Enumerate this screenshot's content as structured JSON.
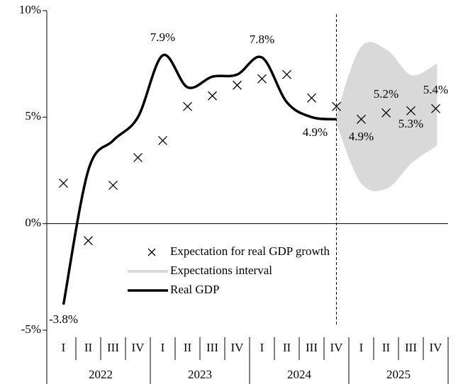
{
  "chart_data": {
    "type": "line",
    "categories": [
      "I",
      "II",
      "III",
      "IV",
      "I",
      "II",
      "III",
      "IV",
      "I",
      "II",
      "III",
      "IV",
      "I",
      "II",
      "III",
      "IV"
    ],
    "years": [
      "2022",
      "2023",
      "2024",
      "2025"
    ],
    "ylim": [
      -5,
      10
    ],
    "yticks": [
      {
        "value": -5,
        "label": "-5%"
      },
      {
        "value": 0,
        "label": "0%"
      },
      {
        "value": 5,
        "label": "5%"
      },
      {
        "value": 10,
        "label": "10%"
      }
    ],
    "interval": {
      "name": "Expectations interval",
      "color": "#d9d9d9",
      "upper": [
        null,
        null,
        null,
        null,
        null,
        null,
        null,
        null,
        null,
        null,
        null,
        4.9,
        8.2,
        8.1,
        6.9,
        7.4
      ],
      "lower": [
        null,
        null,
        null,
        null,
        null,
        null,
        null,
        null,
        null,
        null,
        null,
        4.9,
        2.0,
        1.7,
        2.9,
        3.7
      ]
    },
    "series": [
      {
        "name": "Expectation for real GDP growth",
        "color": "#000000",
        "marker": "x",
        "values": [
          1.9,
          -0.8,
          1.8,
          3.1,
          3.9,
          5.5,
          6.0,
          6.5,
          6.8,
          7.0,
          5.9,
          5.5,
          4.9,
          5.2,
          5.3,
          5.4
        ],
        "value_labels": [
          null,
          null,
          null,
          null,
          null,
          null,
          null,
          null,
          null,
          null,
          null,
          null,
          "4.9%",
          "5.2%",
          "5.3%",
          "5.4%"
        ]
      },
      {
        "name": "Real GDP",
        "color": "#000000",
        "values": [
          -3.8,
          2.5,
          3.9,
          5.0,
          7.9,
          6.4,
          6.9,
          7.0,
          7.8,
          5.7,
          5.0,
          4.9,
          null,
          null,
          null,
          null
        ],
        "value_labels": [
          "-3.8%",
          null,
          null,
          null,
          "7.9%",
          null,
          null,
          null,
          "7.8%",
          null,
          null,
          "4.9%",
          null,
          null,
          null,
          null
        ]
      }
    ]
  }
}
